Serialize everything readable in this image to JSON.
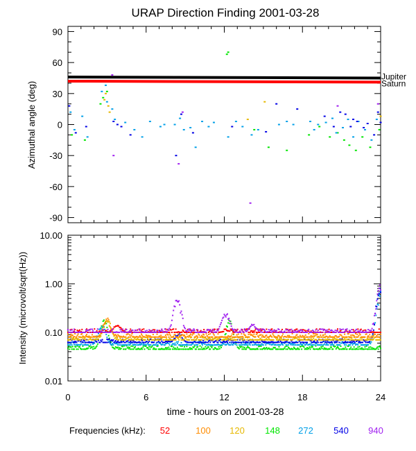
{
  "title": "URAP Direction Finding  2001-03-28",
  "chart_data": [
    {
      "type": "scatter",
      "panel": "top",
      "ylabel": "Azimuthal angle (deg)",
      "ylim": [
        -95,
        95
      ],
      "xlim": [
        0,
        24
      ],
      "yticks": [
        "90",
        "60",
        "30",
        "0",
        "-30",
        "-60",
        "-90"
      ],
      "reference_lines": [
        {
          "name": "Jupiter",
          "color": "#000000",
          "x": [
            0,
            24
          ],
          "y": [
            46,
            45
          ]
        },
        {
          "name": "Saturn",
          "color": "#ff0000",
          "x": [
            0,
            24
          ],
          "y": [
            42,
            41
          ]
        }
      ],
      "series": [
        {
          "name": "120",
          "color": "#e6b800",
          "points": [
            [
              2.8,
              24
            ],
            [
              2.9,
              30
            ],
            [
              3.1,
              18
            ],
            [
              3.2,
              12
            ],
            [
              13.8,
              5
            ],
            [
              15.1,
              22
            ],
            [
              24.0,
              8
            ]
          ]
        },
        {
          "name": "148",
          "color": "#00e600",
          "points": [
            [
              0.3,
              -10
            ],
            [
              1.3,
              -15
            ],
            [
              2.5,
              20
            ],
            [
              2.7,
              26
            ],
            [
              3.0,
              32
            ],
            [
              12.2,
              68
            ],
            [
              12.3,
              70
            ],
            [
              14.3,
              -5
            ],
            [
              15.4,
              -22
            ],
            [
              16.8,
              -25
            ],
            [
              18.5,
              -10
            ],
            [
              19.3,
              -2
            ],
            [
              20.1,
              -12
            ],
            [
              20.7,
              -8
            ],
            [
              21.2,
              -15
            ],
            [
              21.6,
              -20
            ],
            [
              22.1,
              -25
            ],
            [
              22.6,
              -12
            ],
            [
              23.2,
              -22
            ],
            [
              23.9,
              -5
            ]
          ]
        },
        {
          "name": "272",
          "color": "#00a0e8",
          "points": [
            [
              0.2,
              12
            ],
            [
              0.5,
              -5
            ],
            [
              1.1,
              8
            ],
            [
              1.5,
              -12
            ],
            [
              2.6,
              32
            ],
            [
              2.9,
              38
            ],
            [
              3.0,
              22
            ],
            [
              3.4,
              15
            ],
            [
              3.6,
              5
            ],
            [
              4.4,
              2
            ],
            [
              5.1,
              -5
            ],
            [
              5.7,
              -12
            ],
            [
              6.3,
              3
            ],
            [
              7.1,
              -2
            ],
            [
              7.4,
              0
            ],
            [
              8.2,
              0
            ],
            [
              8.6,
              6
            ],
            [
              8.9,
              -5
            ],
            [
              9.4,
              -3
            ],
            [
              9.8,
              -22
            ],
            [
              10.3,
              3
            ],
            [
              10.8,
              -2
            ],
            [
              11.2,
              2
            ],
            [
              12.3,
              -12
            ],
            [
              12.9,
              3
            ],
            [
              13.4,
              -2
            ],
            [
              14.1,
              -10
            ],
            [
              14.6,
              -5
            ],
            [
              16.2,
              0
            ],
            [
              16.8,
              3
            ],
            [
              17.3,
              0
            ],
            [
              18.6,
              3
            ],
            [
              18.9,
              -5
            ],
            [
              19.2,
              0
            ],
            [
              19.8,
              2
            ],
            [
              20.3,
              6
            ],
            [
              20.6,
              -8
            ],
            [
              21.1,
              -3
            ],
            [
              21.5,
              5
            ],
            [
              21.9,
              -12
            ],
            [
              22.3,
              3
            ],
            [
              22.8,
              -5
            ],
            [
              23.3,
              -15
            ],
            [
              23.7,
              5
            ]
          ]
        },
        {
          "name": "540",
          "color": "#0000e6",
          "points": [
            [
              0.1,
              18
            ],
            [
              0.6,
              -8
            ],
            [
              1.4,
              -2
            ],
            [
              3.5,
              3
            ],
            [
              3.8,
              0
            ],
            [
              4.1,
              -2
            ],
            [
              4.8,
              -10
            ],
            [
              8.3,
              -30
            ],
            [
              8.7,
              10
            ],
            [
              9.6,
              -8
            ],
            [
              12.6,
              -2
            ],
            [
              15.2,
              -7
            ],
            [
              16.0,
              20
            ],
            [
              17.6,
              15
            ],
            [
              19.7,
              8
            ],
            [
              20.4,
              -2
            ],
            [
              20.9,
              12
            ],
            [
              21.3,
              10
            ],
            [
              21.7,
              -2
            ],
            [
              21.9,
              5
            ],
            [
              22.2,
              3
            ],
            [
              22.7,
              -3
            ],
            [
              23.0,
              1
            ],
            [
              23.5,
              -10
            ],
            [
              23.8,
              12
            ],
            [
              24.0,
              2
            ]
          ]
        },
        {
          "name": "940",
          "color": "#a020f0",
          "points": [
            [
              3.5,
              -30
            ],
            [
              3.4,
              48
            ],
            [
              8.5,
              -38
            ],
            [
              8.8,
              12
            ],
            [
              14.0,
              -76
            ],
            [
              20.7,
              18
            ],
            [
              23.8,
              20
            ]
          ]
        }
      ]
    },
    {
      "type": "scatter",
      "panel": "bottom",
      "ylabel": "Intensity (microvolt/sqrt(Hz))",
      "xlabel": "time - hours on 2001-03-28",
      "yscale": "log",
      "ylim": [
        0.01,
        10
      ],
      "xlim": [
        0,
        24
      ],
      "yticks": [
        "10.00",
        "1.00",
        "0.10",
        "0.01"
      ],
      "xticks": [
        "0",
        "6",
        "12",
        "18",
        "24"
      ],
      "legend_label": "Frequencies (kHz):",
      "series": [
        {
          "name": "52",
          "color": "#ff0000",
          "baseline": 0.1,
          "events": [
            [
              3.8,
              0.15
            ],
            [
              8.2,
              0.1
            ],
            [
              12.2,
              0.11
            ]
          ]
        },
        {
          "name": "100",
          "color": "#ff8c00",
          "baseline": 0.08,
          "events": [
            [
              3.0,
              0.2
            ]
          ]
        },
        {
          "name": "120",
          "color": "#e6b800",
          "baseline": 0.07,
          "events": [
            [
              3.0,
              0.22
            ]
          ]
        },
        {
          "name": "148",
          "color": "#00e600",
          "baseline": 0.045,
          "events": [
            [
              2.8,
              0.2
            ],
            [
              12.4,
              0.18
            ]
          ]
        },
        {
          "name": "272",
          "color": "#00a0e8",
          "baseline": 0.055,
          "events": [
            [
              2.6,
              0.15
            ],
            [
              24,
              0.7
            ]
          ]
        },
        {
          "name": "540",
          "color": "#0000e6",
          "baseline": 0.062,
          "events": [
            [
              8.5,
              0.1
            ],
            [
              24,
              0.9
            ]
          ]
        },
        {
          "name": "940",
          "color": "#a020f0",
          "baseline": 0.1,
          "events": [
            [
              8.4,
              0.5
            ],
            [
              12.1,
              0.28
            ],
            [
              14.2,
              0.15
            ],
            [
              24,
              1.0
            ]
          ]
        }
      ]
    }
  ]
}
